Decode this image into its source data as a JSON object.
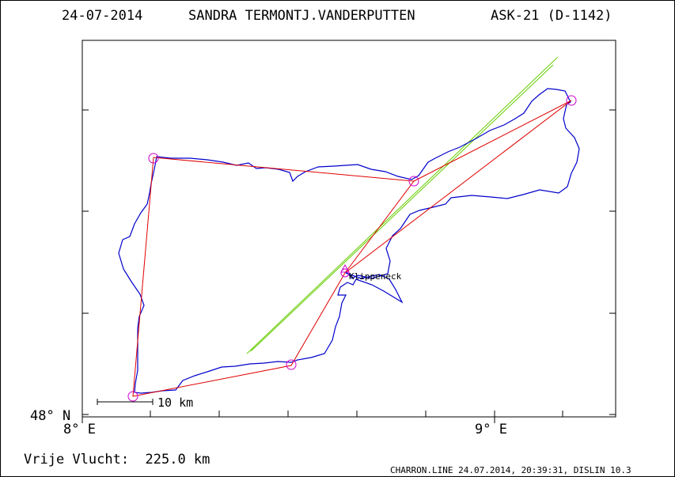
{
  "header": {
    "date": "24-07-2014",
    "pilot": "SANDRA TERMONTJ.VANDERPUTTEN",
    "glider": "ASK-21 (D-1142)"
  },
  "axes": {
    "lat_label": "48° N",
    "lon_left_label": "8° E",
    "lon_right_label": "9° E"
  },
  "scale_bar": {
    "label": "10 km"
  },
  "places": {
    "start": "Klippeneck"
  },
  "footer": {
    "distance_text": "Vrije Vlucht:  225.0 km",
    "credit": "CHARRON.LINE 24.07.2014, 20:39:31, DISLIN 10.3"
  },
  "colors": {
    "track": "#0000cc",
    "task_legs": "#e00000",
    "turnpoints": "#cc00cc",
    "reference_line": "#66cc00",
    "frame": "#000000"
  }
}
